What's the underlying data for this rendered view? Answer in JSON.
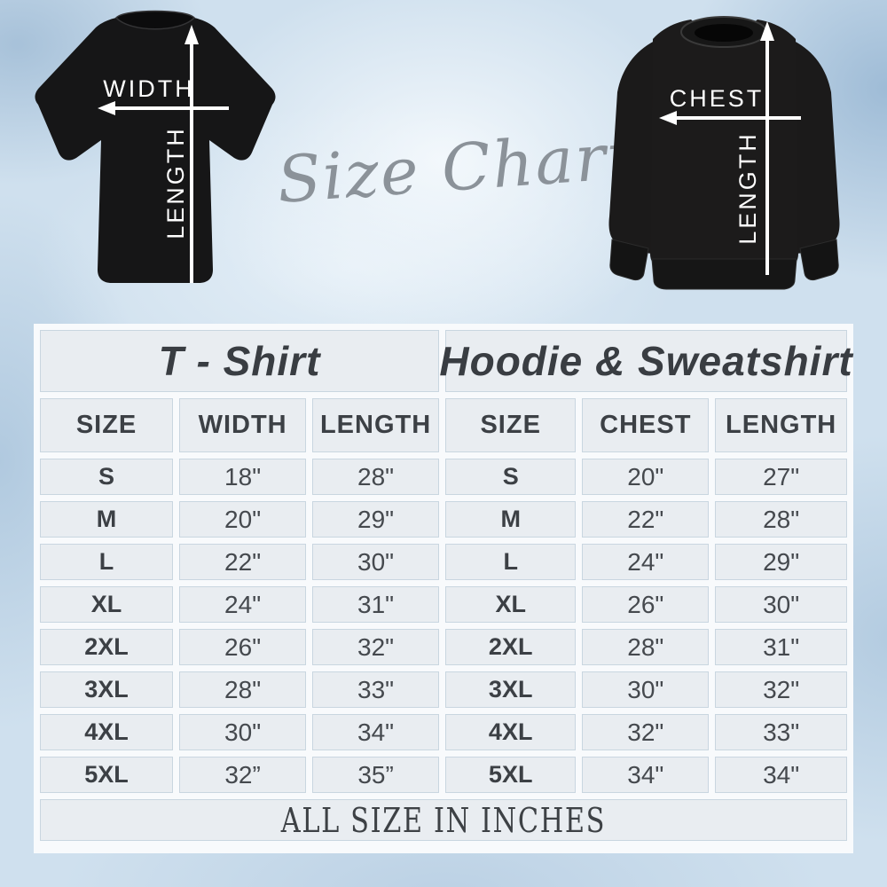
{
  "header": {
    "script_title": "Size Chart"
  },
  "diagram": {
    "tshirt": {
      "width_label": "WIDTH",
      "length_label": "LENGTH"
    },
    "hoodie": {
      "chest_label": "CHEST",
      "length_label": "LENGTH"
    }
  },
  "table": {
    "footer": "ALL SIZE IN INCHES",
    "tshirt": {
      "title": "T - Shirt",
      "columns": [
        "SIZE",
        "WIDTH",
        "LENGTH"
      ],
      "rows": [
        [
          "S",
          "18\"",
          "28\""
        ],
        [
          "M",
          "20\"",
          "29\""
        ],
        [
          "L",
          "22\"",
          "30\""
        ],
        [
          "XL",
          "24\"",
          "31\""
        ],
        [
          "2XL",
          "26\"",
          "32\""
        ],
        [
          "3XL",
          "28\"",
          "33\""
        ],
        [
          "4XL",
          "30\"",
          "34\""
        ],
        [
          "5XL",
          "32”",
          "35”"
        ]
      ]
    },
    "hoodie": {
      "title": "Hoodie & Sweatshirt",
      "columns": [
        "SIZE",
        "CHEST",
        "LENGTH"
      ],
      "rows": [
        [
          "S",
          "20\"",
          "27\""
        ],
        [
          "M",
          "22\"",
          "28\""
        ],
        [
          "L",
          "24\"",
          "29\""
        ],
        [
          "XL",
          "26\"",
          "30\""
        ],
        [
          "2XL",
          "28\"",
          "31\""
        ],
        [
          "3XL",
          "30\"",
          "32\""
        ],
        [
          "4XL",
          "32\"",
          "33\""
        ],
        [
          "5XL",
          "34\"",
          "34\""
        ]
      ]
    }
  },
  "chart_data": [
    {
      "type": "table",
      "title": "T - Shirt",
      "columns": [
        "SIZE",
        "WIDTH",
        "LENGTH"
      ],
      "rows": [
        [
          "S",
          18,
          28
        ],
        [
          "M",
          20,
          29
        ],
        [
          "L",
          22,
          30
        ],
        [
          "XL",
          24,
          31
        ],
        [
          "2XL",
          26,
          32
        ],
        [
          "3XL",
          28,
          33
        ],
        [
          "4XL",
          30,
          34
        ],
        [
          "5XL",
          32,
          35
        ]
      ],
      "units": "inches"
    },
    {
      "type": "table",
      "title": "Hoodie & Sweatshirt",
      "columns": [
        "SIZE",
        "CHEST",
        "LENGTH"
      ],
      "rows": [
        [
          "S",
          20,
          27
        ],
        [
          "M",
          22,
          28
        ],
        [
          "L",
          24,
          29
        ],
        [
          "XL",
          26,
          30
        ],
        [
          "2XL",
          28,
          31
        ],
        [
          "3XL",
          30,
          32
        ],
        [
          "4XL",
          32,
          33
        ],
        [
          "5XL",
          34,
          34
        ]
      ],
      "units": "inches"
    }
  ],
  "colors": {
    "background_blue": "#cfe0ee",
    "cell_bg": "#e9edf1",
    "cell_border": "#c9d6e0",
    "table_gap": "#f8fafc",
    "text_dark": "#3c4045",
    "garment_black": "#161617",
    "script_gray": "#8b9299",
    "arrow_white": "#ffffff"
  }
}
